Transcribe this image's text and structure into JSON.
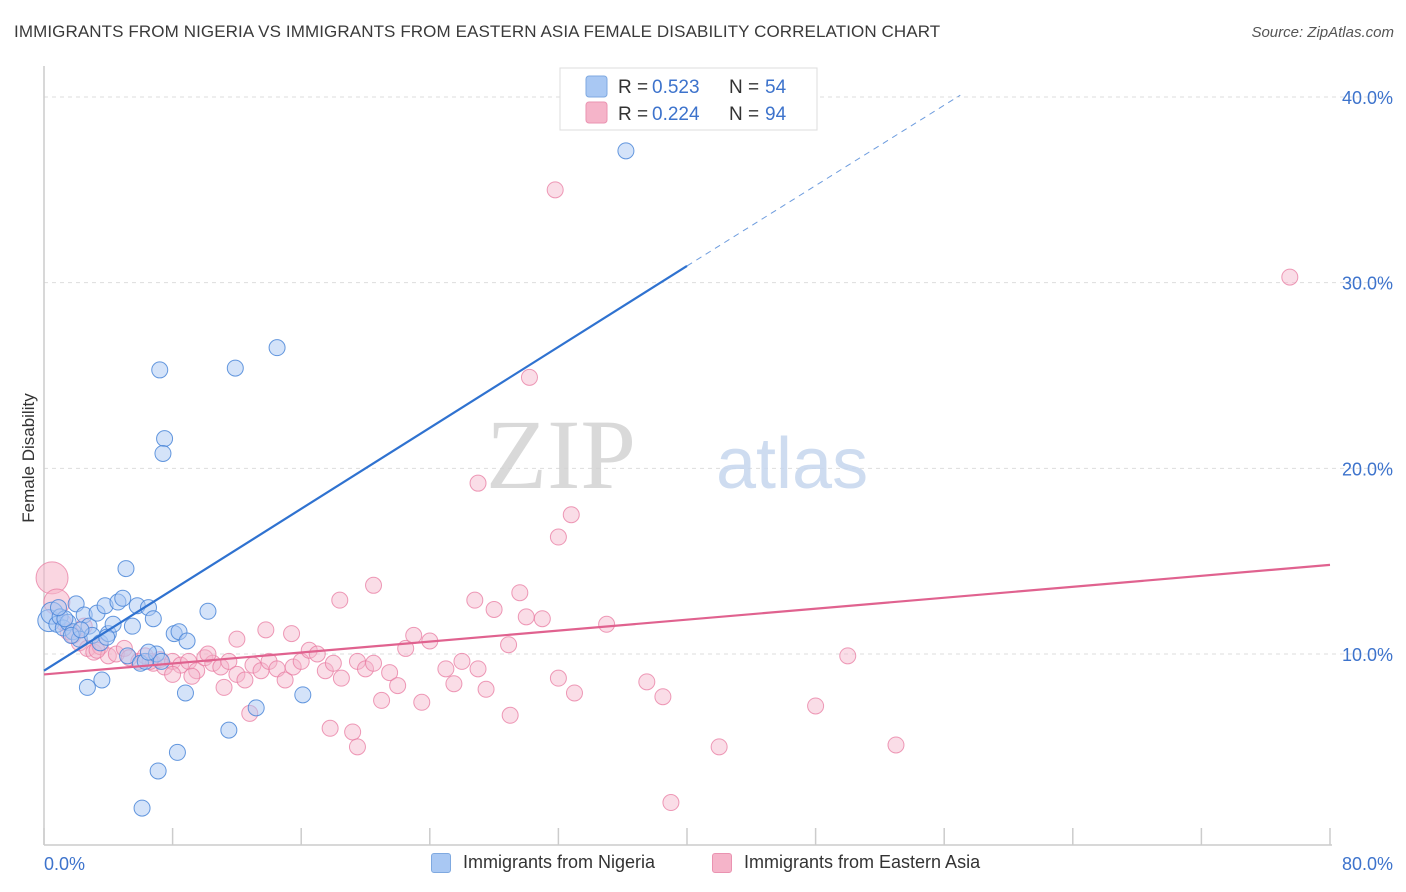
{
  "header": {
    "title": "IMMIGRANTS FROM NIGERIA VS IMMIGRANTS FROM EASTERN ASIA FEMALE DISABILITY CORRELATION CHART",
    "source": "Source: ZipAtlas.com"
  },
  "watermark": {
    "part1": "ZIP",
    "part2": "atlas"
  },
  "colors": {
    "blue": "#4a86d8",
    "blue_fill": "#a9c8f3",
    "blue_line": "#2f72d0",
    "pink": "#e87aa0",
    "pink_fill": "#f5b4c9",
    "pink_line": "#e0628f",
    "tick_label": "#3d73cc",
    "grid": "#dddddd"
  },
  "legend_top": [
    {
      "r_label": "R =",
      "r_value": "0.523",
      "n_label": "N =",
      "n_value": "54"
    },
    {
      "r_label": "R =",
      "r_value": "0.224",
      "n_label": "N =",
      "n_value": "94"
    }
  ],
  "legend_bottom": [
    {
      "label": "Immigrants from Nigeria"
    },
    {
      "label": "Immigrants from Eastern Asia"
    }
  ],
  "chart_data": {
    "type": "scatter",
    "title": "IMMIGRANTS FROM NIGERIA VS IMMIGRANTS FROM EASTERN ASIA FEMALE DISABILITY CORRELATION CHART",
    "ylabel": "Female Disability",
    "xlabel": "",
    "xlim": [
      0,
      80
    ],
    "ylim": [
      0,
      40
    ],
    "x_tick_labels": [
      "0.0%",
      "80.0%"
    ],
    "y_ticks": [
      10,
      20,
      30,
      40
    ],
    "y_tick_labels": [
      "10.0%",
      "20.0%",
      "30.0%",
      "40.0%"
    ],
    "grid": true,
    "series": [
      {
        "name": "Immigrants from Nigeria",
        "r": 0.523,
        "n": 54,
        "trend": {
          "x0": 0,
          "y0": 9.1,
          "x1": 40,
          "y1": 30.9,
          "dash_to_x": 57,
          "dash_to_y": 40.1
        },
        "points": [
          [
            0.3,
            11.8
          ],
          [
            0.5,
            12.2
          ],
          [
            0.8,
            11.6
          ],
          [
            1.0,
            12.0
          ],
          [
            1.2,
            11.4
          ],
          [
            1.5,
            11.7
          ],
          [
            1.8,
            11.2
          ],
          [
            2.0,
            12.7
          ],
          [
            2.2,
            10.8
          ],
          [
            2.5,
            12.1
          ],
          [
            2.8,
            11.5
          ],
          [
            3.0,
            11.0
          ],
          [
            3.3,
            12.2
          ],
          [
            3.5,
            10.6
          ],
          [
            3.8,
            12.6
          ],
          [
            4.0,
            11.1
          ],
          [
            4.3,
            11.6
          ],
          [
            4.6,
            12.8
          ],
          [
            4.9,
            13.0
          ],
          [
            5.2,
            9.9
          ],
          [
            5.5,
            11.5
          ],
          [
            5.8,
            12.6
          ],
          [
            6.0,
            9.5
          ],
          [
            6.3,
            9.6
          ],
          [
            6.5,
            12.5
          ],
          [
            6.8,
            11.9
          ],
          [
            7.0,
            10.0
          ],
          [
            7.3,
            9.6
          ],
          [
            2.7,
            8.2
          ],
          [
            3.6,
            8.6
          ],
          [
            5.1,
            14.6
          ],
          [
            7.2,
            25.3
          ],
          [
            7.5,
            21.6
          ],
          [
            7.4,
            20.8
          ],
          [
            11.9,
            25.4
          ],
          [
            14.5,
            26.5
          ],
          [
            8.1,
            11.1
          ],
          [
            8.4,
            11.2
          ],
          [
            8.9,
            10.7
          ],
          [
            10.2,
            12.3
          ],
          [
            8.8,
            7.9
          ],
          [
            11.5,
            5.9
          ],
          [
            13.2,
            7.1
          ],
          [
            16.1,
            7.8
          ],
          [
            8.3,
            4.7
          ],
          [
            7.1,
            3.7
          ],
          [
            6.1,
            1.7
          ],
          [
            6.5,
            10.1
          ],
          [
            1.3,
            11.9
          ],
          [
            1.7,
            11.0
          ],
          [
            0.9,
            12.5
          ],
          [
            2.3,
            11.3
          ],
          [
            3.9,
            10.9
          ],
          [
            36.2,
            37.1
          ]
        ]
      },
      {
        "name": "Immigrants from Eastern Asia",
        "r": 0.224,
        "n": 94,
        "trend": {
          "x0": 0,
          "y0": 8.9,
          "x1": 80,
          "y1": 14.8
        },
        "points": [
          [
            0.5,
            14.1
          ],
          [
            0.8,
            12.8
          ],
          [
            1.2,
            11.7
          ],
          [
            1.5,
            11.2
          ],
          [
            1.8,
            11.0
          ],
          [
            2.2,
            10.6
          ],
          [
            2.7,
            10.3
          ],
          [
            3.1,
            10.1
          ],
          [
            3.5,
            10.4
          ],
          [
            4.0,
            9.9
          ],
          [
            4.5,
            10.0
          ],
          [
            5.0,
            10.3
          ],
          [
            5.3,
            9.8
          ],
          [
            5.9,
            9.6
          ],
          [
            6.3,
            9.9
          ],
          [
            6.8,
            9.5
          ],
          [
            7.2,
            9.7
          ],
          [
            7.5,
            9.3
          ],
          [
            8.0,
            9.6
          ],
          [
            8.5,
            9.4
          ],
          [
            9.0,
            9.6
          ],
          [
            9.5,
            9.1
          ],
          [
            10.0,
            9.8
          ],
          [
            10.5,
            9.5
          ],
          [
            11.0,
            9.3
          ],
          [
            11.5,
            9.6
          ],
          [
            12.0,
            8.9
          ],
          [
            12.5,
            8.6
          ],
          [
            13.0,
            9.4
          ],
          [
            13.5,
            9.1
          ],
          [
            14.0,
            9.6
          ],
          [
            14.5,
            9.2
          ],
          [
            15.0,
            8.6
          ],
          [
            15.5,
            9.3
          ],
          [
            16.0,
            9.6
          ],
          [
            16.5,
            10.2
          ],
          [
            17.0,
            10.0
          ],
          [
            17.5,
            9.1
          ],
          [
            18.0,
            9.5
          ],
          [
            18.5,
            8.7
          ],
          [
            19.5,
            9.6
          ],
          [
            20.0,
            9.2
          ],
          [
            20.5,
            9.5
          ],
          [
            21.0,
            7.5
          ],
          [
            21.5,
            9.0
          ],
          [
            22.0,
            8.3
          ],
          [
            22.5,
            10.3
          ],
          [
            23.0,
            11.0
          ],
          [
            23.5,
            7.4
          ],
          [
            24.0,
            10.7
          ],
          [
            25.0,
            9.2
          ],
          [
            25.5,
            8.4
          ],
          [
            26.0,
            9.6
          ],
          [
            27.0,
            9.2
          ],
          [
            27.5,
            8.1
          ],
          [
            29.0,
            6.7
          ],
          [
            30.0,
            12.0
          ],
          [
            31.0,
            11.9
          ],
          [
            32.0,
            8.7
          ],
          [
            33.0,
            7.9
          ],
          [
            35.0,
            11.6
          ],
          [
            37.5,
            8.5
          ],
          [
            38.5,
            7.7
          ],
          [
            42.0,
            5.0
          ],
          [
            48.0,
            7.2
          ],
          [
            50.0,
            9.9
          ],
          [
            53.0,
            5.1
          ],
          [
            20.5,
            13.7
          ],
          [
            18.4,
            12.9
          ],
          [
            15.4,
            11.1
          ],
          [
            26.8,
            12.9
          ],
          [
            28.9,
            10.5
          ],
          [
            29.6,
            13.3
          ],
          [
            19.2,
            5.8
          ],
          [
            19.5,
            5.0
          ],
          [
            28.0,
            12.4
          ],
          [
            32.8,
            17.5
          ],
          [
            27.0,
            19.2
          ],
          [
            32.0,
            16.3
          ],
          [
            30.2,
            24.9
          ],
          [
            31.8,
            35.0
          ],
          [
            77.5,
            30.3
          ],
          [
            39.0,
            2.0
          ],
          [
            12.0,
            10.8
          ],
          [
            13.8,
            11.3
          ],
          [
            17.8,
            6.0
          ],
          [
            11.2,
            8.2
          ],
          [
            10.2,
            10.0
          ],
          [
            8.0,
            8.9
          ],
          [
            6.6,
            9.6
          ],
          [
            3.3,
            10.2
          ],
          [
            2.5,
            11.5
          ],
          [
            9.2,
            8.8
          ],
          [
            12.8,
            6.8
          ]
        ]
      }
    ]
  }
}
